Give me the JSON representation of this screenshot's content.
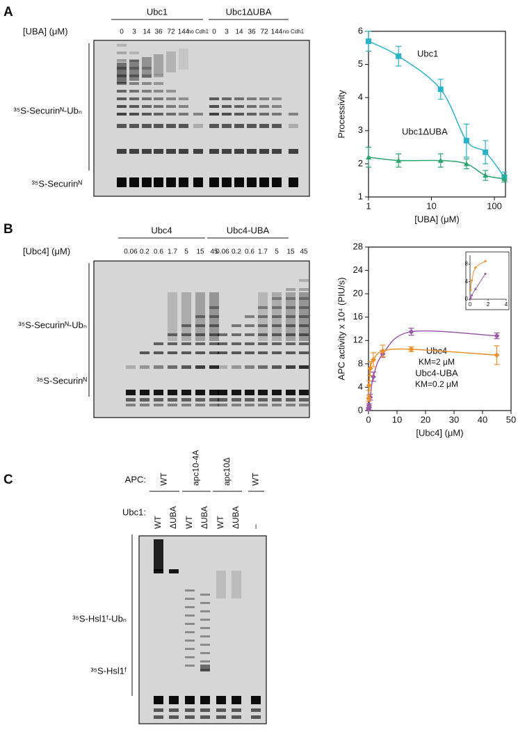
{
  "panels": {
    "A": {
      "letter": "A",
      "groups": [
        "Ubc1",
        "Ubc1ΔUBA"
      ],
      "lane_header": "[UBA] (μM)",
      "lanes": [
        "0",
        "3",
        "14",
        "36",
        "72",
        "144",
        "no Cdh1",
        "0",
        "3",
        "14",
        "36",
        "72",
        "144",
        "no Cdh1"
      ],
      "bands": [
        "³⁵S-Securinᴺ-Ubₙ",
        "³⁵S-Securinᴺ"
      ]
    },
    "B": {
      "letter": "B",
      "groups": [
        "Ubc4",
        "Ubc4-UBA"
      ],
      "lane_header": "[Ubc4] (μM)",
      "lanes": [
        "0.06",
        "0.2",
        "0.6",
        "1.7",
        "5",
        "15",
        "45",
        "0.06",
        "0.2",
        "0.6",
        "1.7",
        "5",
        "15",
        "45"
      ],
      "bands": [
        "³⁵S-Securinᴺ-Ubₙ",
        "³⁵S-Securinᴺ"
      ]
    },
    "C": {
      "letter": "C",
      "apc_header": "APC:",
      "apc_lanes": [
        "WT",
        "apc10-4A",
        "apc10Δ",
        "WT"
      ],
      "ubc1_header": "Ubc1:",
      "ubc1_lanes": [
        "WT",
        "ΔUBA",
        "WT",
        "ΔUBA",
        "WT",
        "ΔUBA",
        "–"
      ],
      "bands": [
        "³⁵S-Hsl1ᶠ-Ubₙ",
        "³⁵S-Hsl1ᶠ"
      ]
    }
  },
  "chart_data": [
    {
      "type": "line",
      "xlabel": "[UBA] (μM)",
      "ylabel": "Processivity",
      "log_x": true,
      "x": [
        1,
        3,
        14,
        36,
        72,
        144
      ],
      "xlim": [
        1,
        150
      ],
      "ylim": [
        1,
        6
      ],
      "xticks": [
        1,
        10,
        100
      ],
      "yticks": [
        1,
        2,
        3,
        4,
        5,
        6
      ],
      "series": [
        {
          "name": "Ubc1",
          "color": "#29b3cb",
          "marker": "square",
          "values": [
            5.7,
            5.25,
            4.25,
            2.7,
            2.35,
            1.6
          ],
          "errors": [
            0.3,
            0.3,
            0.3,
            0.5,
            0.35,
            0.15
          ]
        },
        {
          "name": "Ubc1ΔUBA",
          "color": "#27a56c",
          "marker": "triangle",
          "values": [
            2.2,
            2.1,
            2.1,
            2.0,
            1.65,
            1.55
          ],
          "errors": [
            0.3,
            0.2,
            0.2,
            0.15,
            0.15,
            0.1
          ]
        }
      ]
    },
    {
      "type": "line",
      "xlabel": "[Ubc4] (μM)",
      "ylabel": "APC activity x 10⁴ (PIU/s)",
      "log_x": false,
      "x": [
        0.06,
        0.2,
        0.6,
        1.7,
        5,
        15,
        45
      ],
      "xlim": [
        0,
        50
      ],
      "ylim": [
        0,
        28
      ],
      "xticks": [
        0,
        10,
        20,
        30,
        40,
        50
      ],
      "yticks": [
        0,
        4,
        8,
        12,
        16,
        20,
        24,
        28
      ],
      "series": [
        {
          "name": "Ubc4",
          "color": "#9b5aa8",
          "marker": "diamond",
          "values": [
            0.3,
            0.9,
            2.3,
            5.8,
            9.7,
            13.5,
            12.8
          ],
          "errors": [
            0.2,
            0.3,
            0.5,
            0.8,
            0.6,
            0.6,
            0.5
          ]
        },
        {
          "name": "Ubc4-UBA",
          "color": "#ef8f2a",
          "marker": "diamond",
          "values": [
            2.1,
            4.3,
            7.2,
            8.7,
            10.2,
            10.5,
            9.5
          ],
          "errors": [
            0.5,
            0.8,
            1.2,
            1.2,
            1.0,
            0.4,
            1.6
          ]
        }
      ],
      "annotations": [
        "KM=2 μM",
        "KM=0.2 μM"
      ],
      "inset": {
        "xlim": [
          0,
          4
        ],
        "ylim": [
          0,
          10
        ],
        "xticks": [
          0,
          2,
          4
        ],
        "yticks": [
          0,
          4,
          8
        ]
      }
    }
  ]
}
